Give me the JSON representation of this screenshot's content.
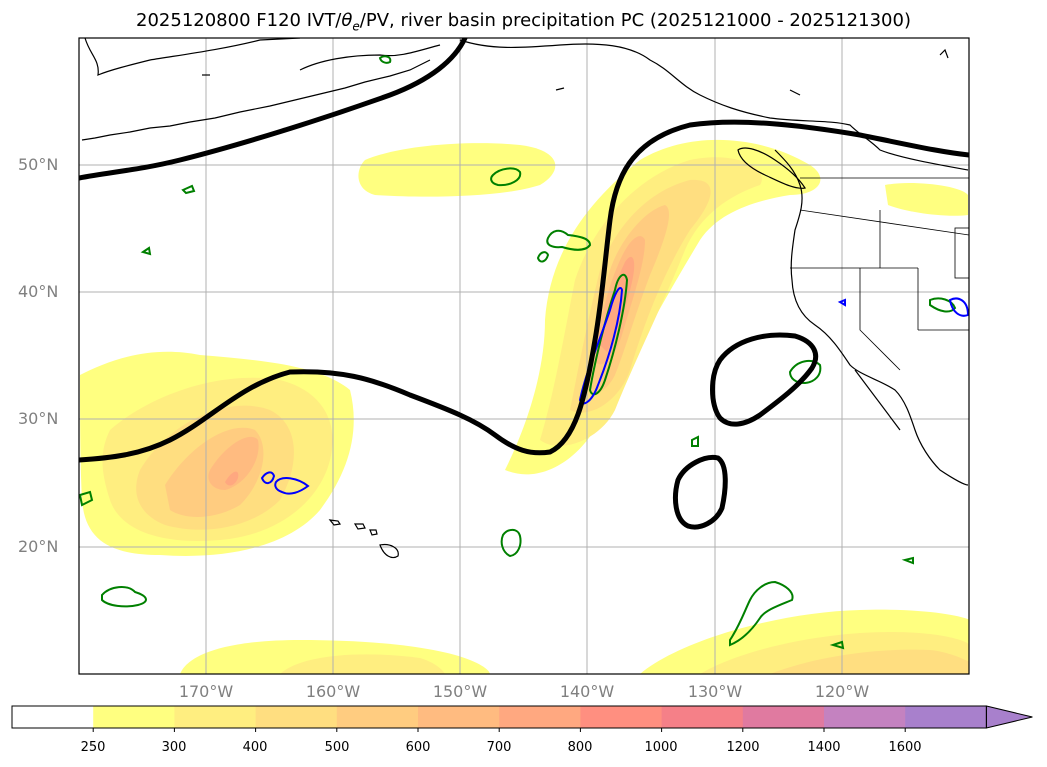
{
  "title": "2025120800 F120 IVT/θe/PV, river basin precipitation PC (2025121000 - 2025121300)",
  "title_parts": {
    "prefix": "2025120800 F120 IVT/",
    "theta": "θ",
    "sub": "e",
    "suffix": "/PV, river basin precipitation PC (2025121000 - 2025121300)"
  },
  "map": {
    "lat_labels": [
      "50°N",
      "40°N",
      "30°N",
      "20°N"
    ],
    "lon_labels": [
      "170°W",
      "160°W",
      "150°W",
      "140°W",
      "130°W",
      "120°W"
    ],
    "colors": {
      "ivt_contour": "#000000",
      "precip_green": "#008000",
      "precip_blue": "#0000ff",
      "coastline": "#000000",
      "gridline": "#b0b0b0"
    }
  },
  "colorbar": {
    "ticks": [
      "250",
      "300",
      "400",
      "500",
      "600",
      "700",
      "800",
      "1000",
      "1200",
      "1400",
      "1600"
    ],
    "colors": [
      "#ffffff",
      "#ffff80",
      "#ffee80",
      "#ffde80",
      "#ffcc80",
      "#ffbb80",
      "#ffa880",
      "#ff8f80",
      "#f58088",
      "#e07aa0",
      "#c482c0",
      "#a880cc"
    ],
    "extend": "max"
  }
}
